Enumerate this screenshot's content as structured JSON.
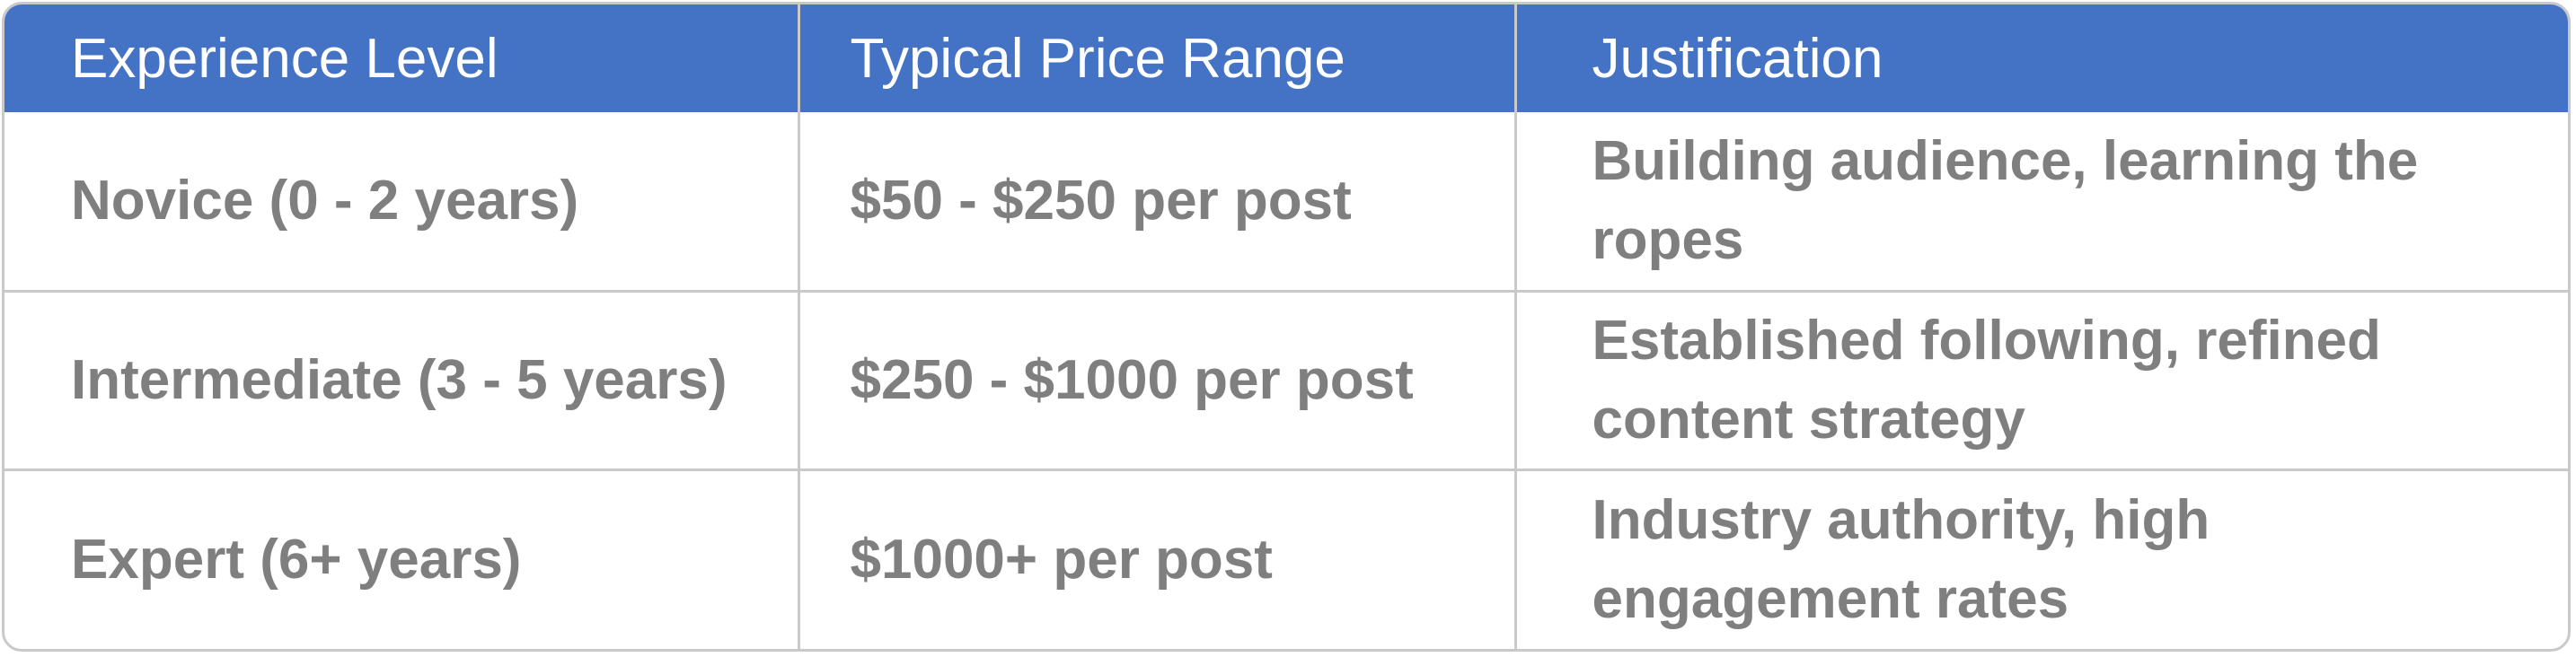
{
  "table": {
    "headers": [
      "Experience Level",
      "Typical Price Range",
      "Justification"
    ],
    "rows": [
      [
        "Novice (0 - 2 years)",
        "$50 - $250 per post",
        "Building audience, learning the ropes"
      ],
      [
        "Intermediate (3 - 5 years)",
        "$250 - $1000 per post",
        "Established following, refined content strategy"
      ],
      [
        "Expert (6+ years)",
        "$1000+ per post",
        "Industry authority, high engagement rates"
      ]
    ],
    "colors": {
      "header_bg": "#4472c4",
      "header_text": "#ffffff",
      "body_text": "#7f7f7f",
      "border": "#c9c9c9"
    }
  }
}
